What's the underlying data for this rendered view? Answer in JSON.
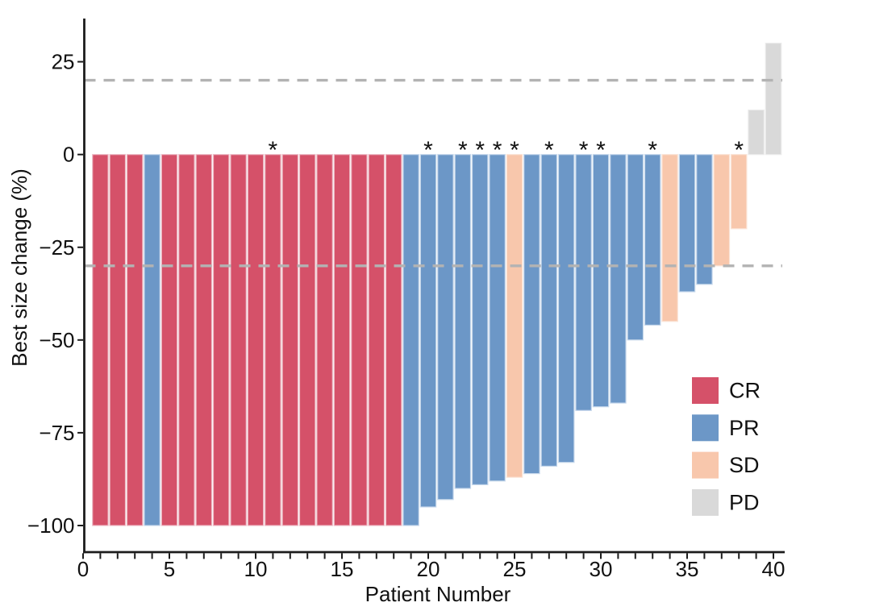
{
  "chart_data": {
    "type": "bar",
    "subtype": "waterfall-best-response",
    "title": "",
    "xlabel": "Patient Number",
    "ylabel": "Best size change (%)",
    "xlim": [
      0,
      40.6
    ],
    "ylim": [
      -107,
      37
    ],
    "x_major_ticks": [
      0,
      5,
      10,
      15,
      20,
      25,
      30,
      35,
      40
    ],
    "x_minor_tick_every": 1,
    "y_ticks": [
      25,
      0,
      -25,
      -50,
      -75,
      -100
    ],
    "grid": "off",
    "reference_lines": [
      {
        "y": 20,
        "style": "dashed",
        "color": "#b3b3b3"
      },
      {
        "y": -30,
        "style": "dashed",
        "color": "#b3b3b3"
      }
    ],
    "flag_symbol": "*",
    "legend": {
      "position": "right-middle",
      "entries": [
        {
          "label": "CR",
          "color": "#d55169"
        },
        {
          "label": "PR",
          "color": "#6c97c7"
        },
        {
          "label": "SD",
          "color": "#f8c7ac"
        },
        {
          "label": "PD",
          "color": "#d9d9d9"
        }
      ]
    },
    "patients": [
      {
        "patient": 1,
        "change": -100,
        "response": "CR",
        "asterisk": false
      },
      {
        "patient": 2,
        "change": -100,
        "response": "CR",
        "asterisk": false
      },
      {
        "patient": 3,
        "change": -100,
        "response": "CR",
        "asterisk": false
      },
      {
        "patient": 4,
        "change": -100,
        "response": "PR",
        "asterisk": false
      },
      {
        "patient": 5,
        "change": -100,
        "response": "CR",
        "asterisk": false
      },
      {
        "patient": 6,
        "change": -100,
        "response": "CR",
        "asterisk": false
      },
      {
        "patient": 7,
        "change": -100,
        "response": "CR",
        "asterisk": false
      },
      {
        "patient": 8,
        "change": -100,
        "response": "CR",
        "asterisk": false
      },
      {
        "patient": 9,
        "change": -100,
        "response": "CR",
        "asterisk": false
      },
      {
        "patient": 10,
        "change": -100,
        "response": "CR",
        "asterisk": false
      },
      {
        "patient": 11,
        "change": -100,
        "response": "CR",
        "asterisk": true
      },
      {
        "patient": 12,
        "change": -100,
        "response": "CR",
        "asterisk": false
      },
      {
        "patient": 13,
        "change": -100,
        "response": "CR",
        "asterisk": false
      },
      {
        "patient": 14,
        "change": -100,
        "response": "CR",
        "asterisk": false
      },
      {
        "patient": 15,
        "change": -100,
        "response": "CR",
        "asterisk": false
      },
      {
        "patient": 16,
        "change": -100,
        "response": "CR",
        "asterisk": false
      },
      {
        "patient": 17,
        "change": -100,
        "response": "CR",
        "asterisk": false
      },
      {
        "patient": 18,
        "change": -100,
        "response": "CR",
        "asterisk": false
      },
      {
        "patient": 19,
        "change": -100,
        "response": "PR",
        "asterisk": false
      },
      {
        "patient": 20,
        "change": -95,
        "response": "PR",
        "asterisk": true
      },
      {
        "patient": 21,
        "change": -93,
        "response": "PR",
        "asterisk": false
      },
      {
        "patient": 22,
        "change": -90,
        "response": "PR",
        "asterisk": true
      },
      {
        "patient": 23,
        "change": -89,
        "response": "PR",
        "asterisk": true
      },
      {
        "patient": 24,
        "change": -88,
        "response": "PR",
        "asterisk": true
      },
      {
        "patient": 25,
        "change": -87,
        "response": "SD",
        "asterisk": true
      },
      {
        "patient": 26,
        "change": -86,
        "response": "PR",
        "asterisk": false
      },
      {
        "patient": 27,
        "change": -84,
        "response": "PR",
        "asterisk": true
      },
      {
        "patient": 28,
        "change": -83,
        "response": "PR",
        "asterisk": false
      },
      {
        "patient": 29,
        "change": -69,
        "response": "PR",
        "asterisk": true
      },
      {
        "patient": 30,
        "change": -68,
        "response": "PR",
        "asterisk": true
      },
      {
        "patient": 31,
        "change": -67,
        "response": "PR",
        "asterisk": false
      },
      {
        "patient": 32,
        "change": -50,
        "response": "PR",
        "asterisk": false
      },
      {
        "patient": 33,
        "change": -46,
        "response": "PR",
        "asterisk": true
      },
      {
        "patient": 34,
        "change": -45,
        "response": "SD",
        "asterisk": false
      },
      {
        "patient": 35,
        "change": -37,
        "response": "PR",
        "asterisk": false
      },
      {
        "patient": 36,
        "change": -35,
        "response": "PR",
        "asterisk": false
      },
      {
        "patient": 37,
        "change": -30,
        "response": "SD",
        "asterisk": false
      },
      {
        "patient": 38,
        "change": -20,
        "response": "SD",
        "asterisk": true
      },
      {
        "patient": 39,
        "change": 12,
        "response": "PD",
        "asterisk": false
      },
      {
        "patient": 40,
        "change": 30,
        "response": "PD",
        "asterisk": false
      }
    ]
  },
  "style": {
    "fill": {
      "CR": "#d55169",
      "PR": "#6c97c7",
      "SD": "#f8c7ac",
      "PD": "#d9d9d9"
    },
    "border": {
      "CR": "#edbcc6",
      "PR": "#c8d9ec",
      "SD": "#fbe4d7",
      "PD": "#eaeaea"
    },
    "axis_color": "#1c1c1c",
    "text_color": "#111111",
    "dash_color": "#b3b3b3",
    "background": "#ffffff"
  }
}
